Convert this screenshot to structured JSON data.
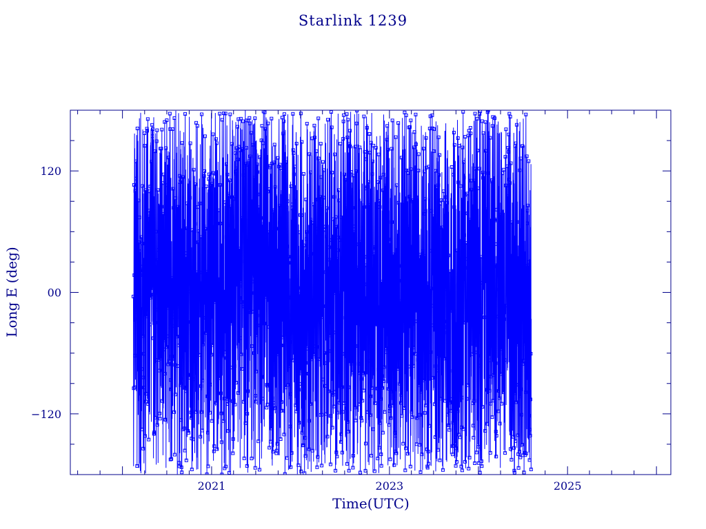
{
  "chart_data": {
    "type": "line",
    "title": "Starlink 1239",
    "xlabel": "Time(UTC)",
    "ylabel": "Long E (deg)",
    "x_axis": "date",
    "xlim": [
      "2019-06-01",
      "2026-03-01"
    ],
    "ylim": [
      -180,
      180
    ],
    "x_ticks": [
      "2021",
      "2023",
      "2025"
    ],
    "y_ticks": [
      {
        "value": 120,
        "label": "120"
      },
      {
        "value": 0,
        "label": "00"
      },
      {
        "value": -120,
        "label": "−120"
      }
    ],
    "grid": false,
    "legend": "none",
    "data_start": "2020-02-15",
    "data_end": "2024-08-05",
    "markers": "squares",
    "colors": {
      "line": "#0000ff",
      "axes": "#00008b",
      "text": "#00008b"
    }
  }
}
